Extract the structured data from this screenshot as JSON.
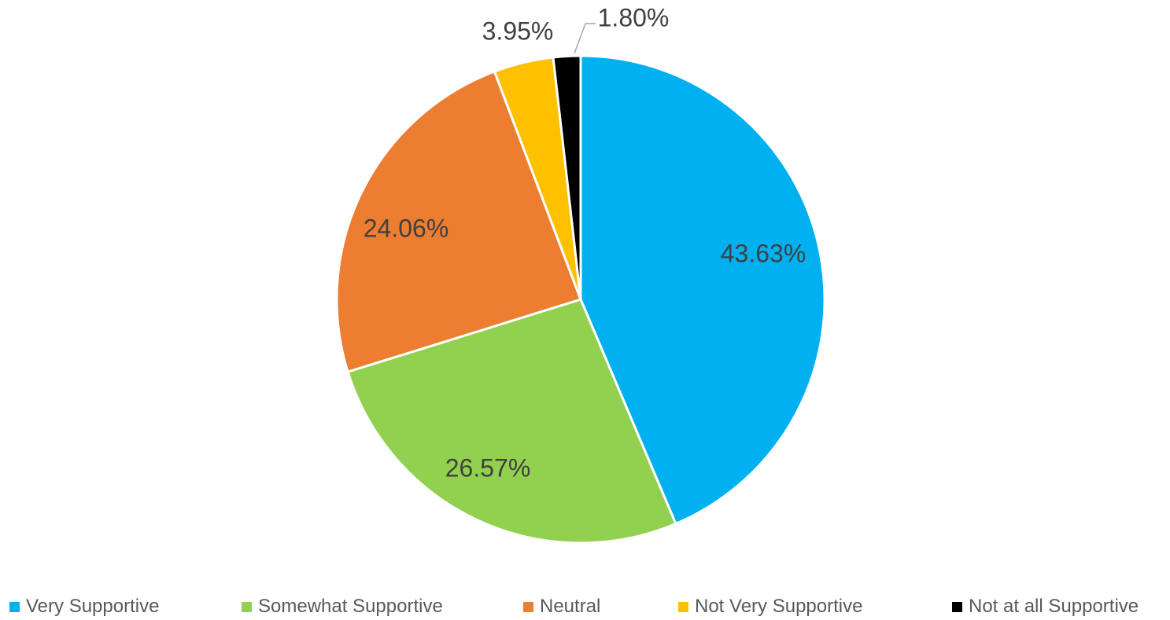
{
  "chart_data": {
    "type": "pie",
    "title": "",
    "start_angle_deg": 0,
    "direction": "clockwise",
    "slices": [
      {
        "label": "Very Supportive",
        "value": 43.63,
        "data_label": "43.63%",
        "color": "#00B0F0"
      },
      {
        "label": "Somewhat Supportive",
        "value": 26.57,
        "data_label": "26.57%",
        "color": "#92D050"
      },
      {
        "label": "Neutral",
        "value": 24.06,
        "data_label": "24.06%",
        "color": "#ED7D31"
      },
      {
        "label": "Not Very Supportive",
        "value": 3.95,
        "data_label": "3.95%",
        "color": "#FFC000"
      },
      {
        "label": "Not at all Supportive",
        "value": 1.8,
        "data_label": "1.80%",
        "color": "#000000"
      }
    ],
    "legend_position": "bottom",
    "label_color": "#404040",
    "legend_text_color": "#595959"
  }
}
